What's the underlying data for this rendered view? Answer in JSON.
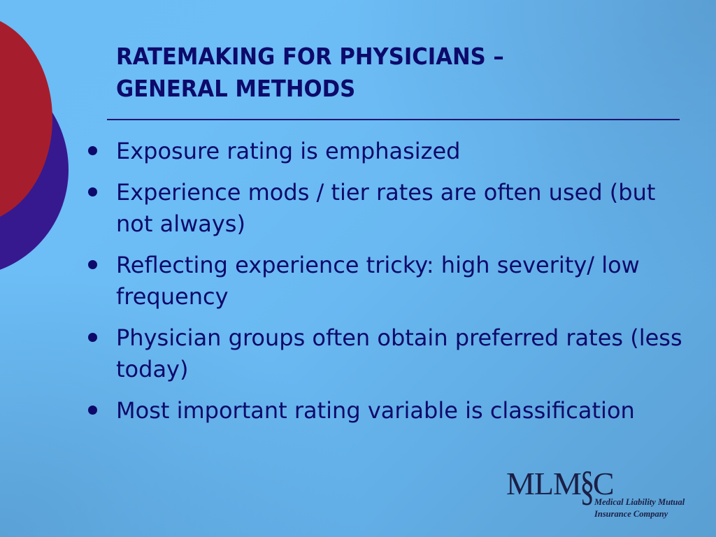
{
  "slide": {
    "title_lines": [
      "RATEMAKING FOR PHYSICIANS –",
      "GENERAL METHODS"
    ],
    "bullets": [
      "Exposure rating is emphasized",
      "Experience mods / tier rates are often used (but not always)",
      "Reflecting experience tricky: high severity/ low frequency",
      "Physician groups often obtain preferred rates (less today)",
      "Most important rating variable is classification"
    ]
  },
  "logo": {
    "mark_left": "MLM",
    "mark_symbol": "§",
    "mark_right": "C",
    "tagline_lines": [
      "Medical Liability Mutual",
      "Insurance Company"
    ]
  },
  "colors": {
    "title_text": "#0d0a6b",
    "body_text": "#0d0a6b",
    "circle_red": "#a61e2e",
    "circle_purple": "#36198f",
    "background_light": "#6cbcf5",
    "background_dark": "#5a9fd2"
  },
  "icons": {
    "bullet": "bullet-dot-icon",
    "logo_symbol": "section-sign-icon"
  }
}
